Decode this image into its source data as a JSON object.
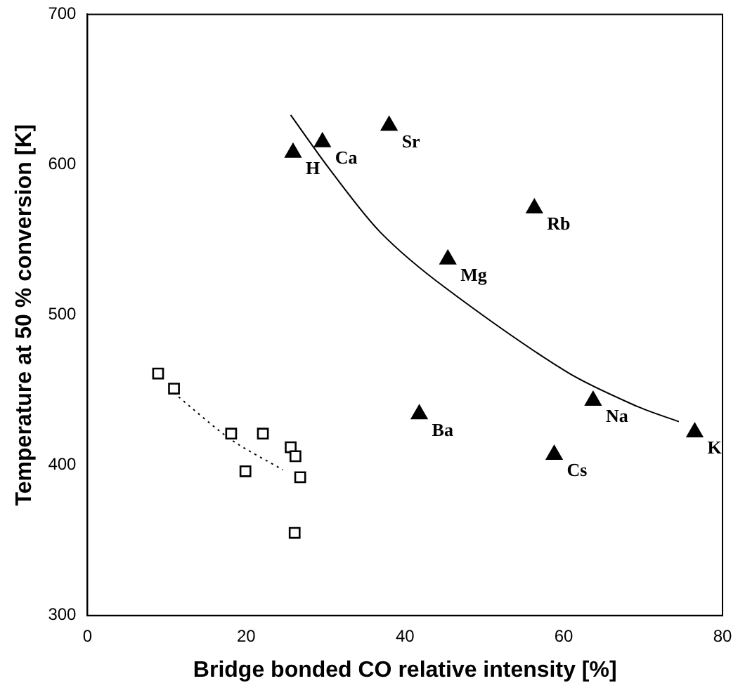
{
  "chart_data": {
    "type": "scatter",
    "xlabel": "Bridge bonded CO relative intensity [%]",
    "ylabel": "Temperature at 50 % conversion [K]",
    "xlim": [
      0,
      80
    ],
    "xticks": [
      0,
      20,
      40,
      60,
      80
    ],
    "ylim": [
      300,
      700
    ],
    "yticks": [
      300,
      400,
      500,
      600,
      700
    ],
    "grid": false,
    "legend": false,
    "series": [
      {
        "marker": "triangle",
        "color": "#000000",
        "x": [
          25.9,
          29.6,
          38,
          45.4,
          56.3,
          41.8,
          58.8,
          63.7,
          76.5
        ],
        "values": [
          608,
          615,
          626,
          537,
          571,
          434,
          407,
          443,
          422
        ]
      },
      {
        "marker": "square",
        "color": "#000000",
        "x": [
          8.9,
          10.9,
          18.1,
          22.1,
          19.9,
          25.6,
          26.2,
          26.8,
          26.1
        ],
        "values": [
          461,
          451,
          421,
          421,
          396,
          412,
          406,
          392,
          355
        ]
      },
      {
        "type": "line",
        "marker": "none",
        "line_style": "solid",
        "color": "#000000",
        "x": [
          25.6,
          30.5,
          36.9,
          45.1,
          60.4,
          69.3,
          74.5
        ],
        "values": [
          633,
          597,
          555,
          518,
          462,
          439,
          429
        ]
      },
      {
        "type": "line",
        "marker": "none",
        "line_style": "dotted",
        "color": "#000000",
        "x": [
          10.9,
          18.1,
          24.6
        ],
        "values": [
          448,
          417,
          397
        ]
      }
    ],
    "annotations": [
      {
        "text": "H",
        "x": 25.9,
        "y": 608
      },
      {
        "text": "Ca",
        "x": 29.6,
        "y": 615
      },
      {
        "text": "Sr",
        "x": 38,
        "y": 626
      },
      {
        "text": "Mg",
        "x": 45.4,
        "y": 537
      },
      {
        "text": "Rb",
        "x": 56.3,
        "y": 571
      },
      {
        "text": "Ba",
        "x": 41.8,
        "y": 434
      },
      {
        "text": "Cs",
        "x": 58.8,
        "y": 407
      },
      {
        "text": "Na",
        "x": 63.7,
        "y": 443
      },
      {
        "text": "K",
        "x": 76.5,
        "y": 422
      }
    ]
  }
}
